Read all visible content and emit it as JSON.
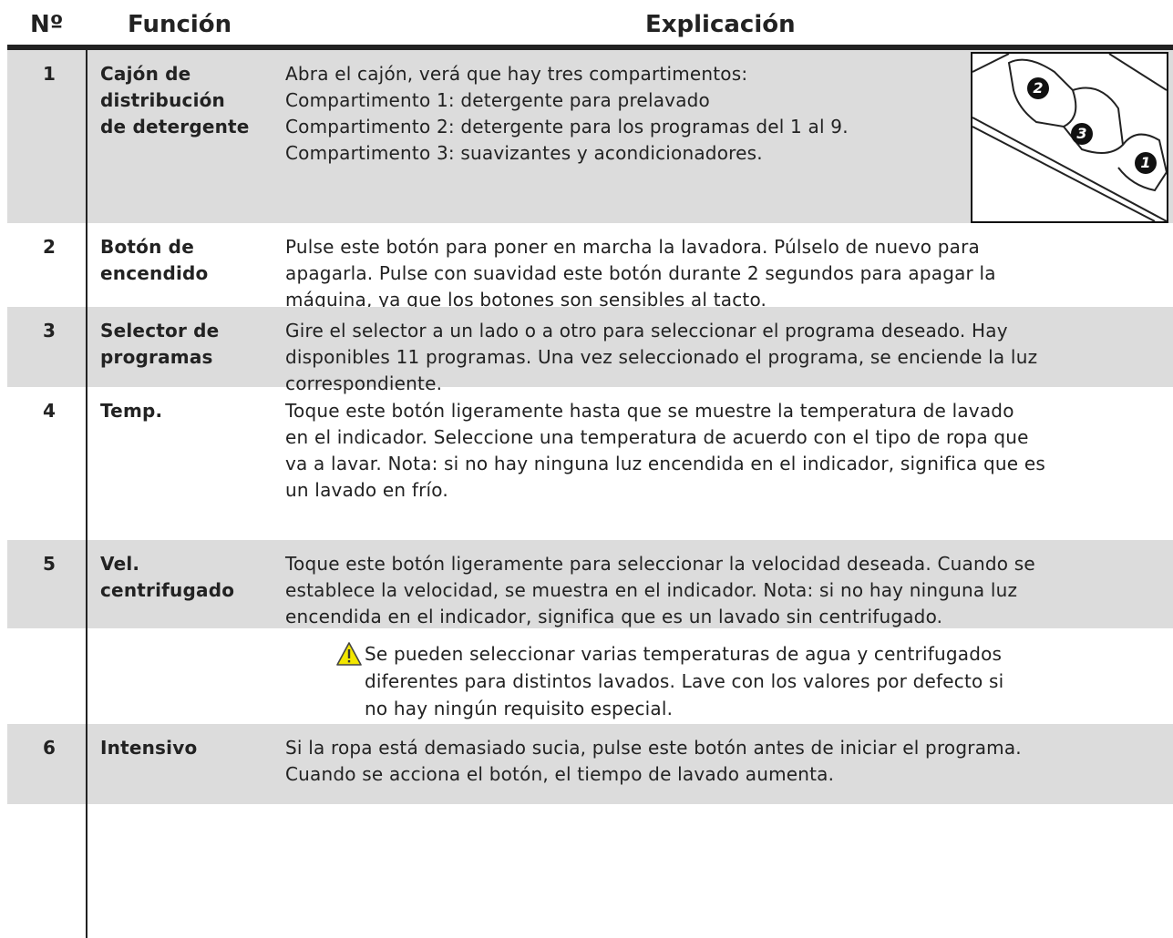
{
  "header": {
    "number": "Nº",
    "function": "Función",
    "explanation": "Explicación"
  },
  "rows": [
    {
      "number": "1",
      "function": [
        "Cajón de",
        "distribución",
        "de detergente"
      ],
      "explanation": [
        "Abra el cajón, verá que hay tres compartimentos:",
        "Compartimento 1: detergente para prelavado",
        "Compartimento 2: detergente para los programas del 1 al 9.",
        "Compartimento 3: suavizantes y acondicionadores."
      ],
      "figure_labels": [
        "2",
        "3",
        "1"
      ]
    },
    {
      "number": "2",
      "function": [
        "Botón de",
        "encendido"
      ],
      "explanation": [
        "Pulse este botón para poner en marcha la lavadora. Púlselo de nuevo para",
        "apagarla. Pulse con suavidad este botón durante 2 segundos para apagar la",
        "máquina, ya que los botones son sensibles al tacto."
      ]
    },
    {
      "number": "3",
      "function": [
        "Selector de",
        "programas"
      ],
      "explanation": [
        "Gire el selector a un lado o a otro para seleccionar el programa deseado. Hay",
        "disponibles 11 programas. Una vez seleccionado el programa, se enciende la luz",
        "correspondiente."
      ]
    },
    {
      "number": "4",
      "function": [
        "Temp."
      ],
      "explanation": [
        "Toque este botón ligeramente hasta que se muestre la temperatura de lavado",
        "en el indicador. Seleccione una temperatura de acuerdo con el tipo de ropa que",
        "va a lavar. Nota: si no hay ninguna luz encendida en el indicador, significa que es",
        "un lavado en frío."
      ]
    },
    {
      "number": "5",
      "function": [
        "Vel.",
        "centrifugado"
      ],
      "explanation": [
        "Toque este botón ligeramente para seleccionar la velocidad deseada. Cuando se",
        "establece la velocidad, se muestra en el indicador. Nota: si no hay ninguna luz",
        "encendida en el indicador, significa que es un lavado sin centrifugado."
      ]
    },
    {
      "note": [
        "Se pueden seleccionar varias temperaturas de agua y centrifugados",
        "diferentes para distintos lavados. Lave con los valores por defecto si",
        "no hay ningún requisito especial."
      ]
    },
    {
      "number": "6",
      "function": [
        "Intensivo"
      ],
      "explanation": [
        "Si la ropa está demasiado sucia, pulse este botón antes de iniciar el programa.",
        "Cuando se acciona el botón, el tiempo de lavado aumenta."
      ]
    }
  ]
}
